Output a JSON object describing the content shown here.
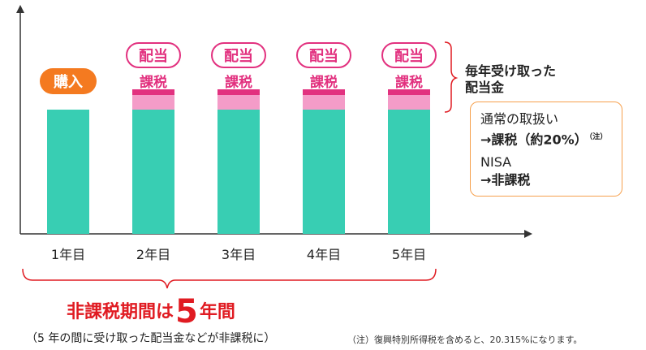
{
  "colors": {
    "dividend_bar": "#38ceb3",
    "dividend_top": "#f49cc8",
    "dividend_edge": "#e2317f",
    "purchase": "#f47a20",
    "pink_text": "#e2317f",
    "red_text": "#e01b22",
    "note_border": "#f6a04d"
  },
  "chart_data": {
    "type": "bar",
    "categories": [
      "1年目",
      "2年目",
      "3年目",
      "4年目",
      "5年目"
    ],
    "values": [
      1,
      1,
      1,
      1,
      1
    ],
    "dividend_segment": [
      false,
      true,
      true,
      true,
      true
    ]
  },
  "purchase_label": "購入",
  "dividend_pill": "配当",
  "tax_label": "課税",
  "side_label_line1": "毎年受け取った",
  "side_label_line2": "配当金",
  "note": {
    "normal_title": "通常の取扱い",
    "normal_value": "→課税（約20%）",
    "normal_note_mark": "（注）",
    "nisa_title": "NISA",
    "nisa_value": "→非課税"
  },
  "period": {
    "title_pre": "非課税期間は",
    "title_number": "5",
    "title_post": "年間",
    "subtitle": "（5 年の間に受け取った配当金などが非課税に）"
  },
  "footnote": "（注）復興特別所得税を含めると、20.315%になります。"
}
